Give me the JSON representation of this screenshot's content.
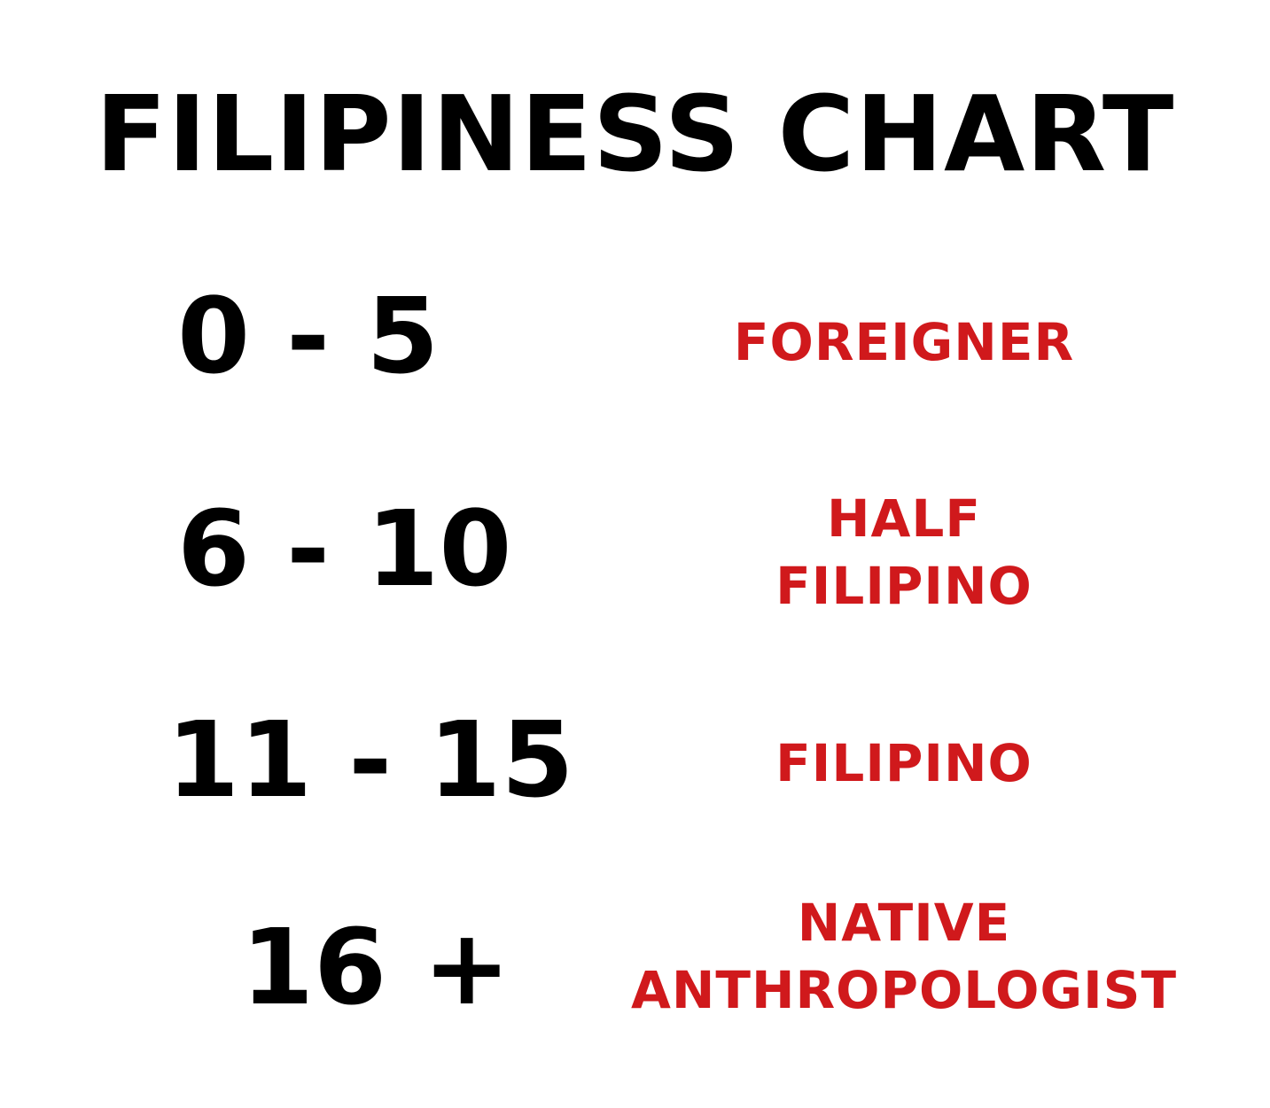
{
  "title": "FILIPINESS CHART",
  "colors": {
    "text": "#000000",
    "accent": "#d0191c",
    "background": "#ffffff"
  },
  "rows": [
    {
      "range": "0 - 5",
      "label_lines": [
        "FOREIGNER"
      ]
    },
    {
      "range": "6 - 10",
      "label_lines": [
        "HALF",
        "FILIPINO"
      ]
    },
    {
      "range": "11 - 15",
      "label_lines": [
        "FILIPINO"
      ]
    },
    {
      "range": "16 +",
      "label_lines": [
        "NATIVE",
        "ANTHROPOLOGIST"
      ]
    }
  ]
}
